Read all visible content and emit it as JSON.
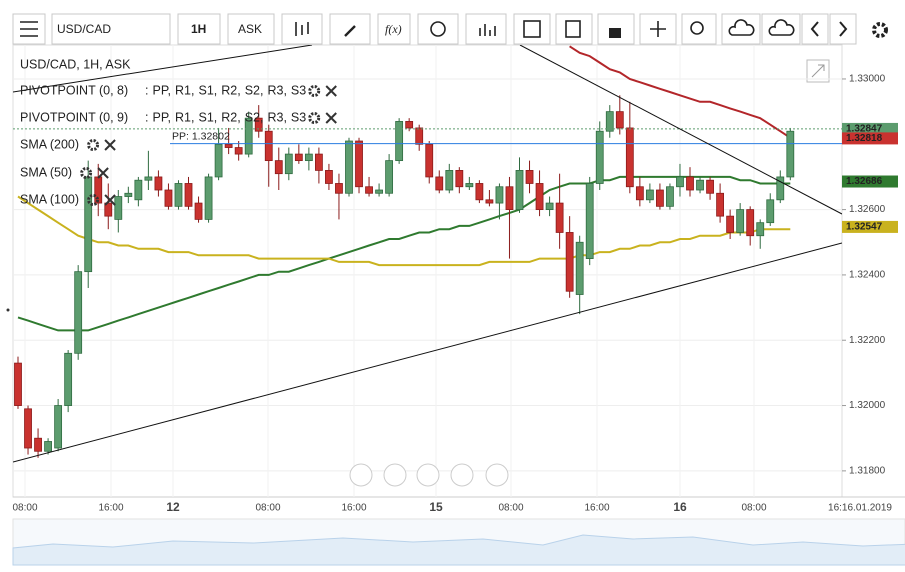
{
  "toolbar": {
    "symbol": "USD/CAD",
    "interval": "1H",
    "price_type": "ASK",
    "function": "f(x)"
  },
  "legend": {
    "header": "USD/CAD, 1H, ASK",
    "pivots": [
      "PIVOTPOINT (0, 8)",
      "PIVOTPOINT (0, 9)"
    ],
    "pivot_prefix": ":",
    "pivot_levels": [
      {
        "label": "PP,",
        "color": "#2a7de1"
      },
      {
        "label": "R1,",
        "color": "#2e8b3a"
      },
      {
        "label": "S1,",
        "color": "#d0161b"
      },
      {
        "label": "R2,",
        "color": "#d0161b"
      },
      {
        "label": "S2,",
        "color": "#e8860c"
      },
      {
        "label": "R3,",
        "color": "#e8860c"
      },
      {
        "label": "S3",
        "color": "#d8c400"
      }
    ]
  },
  "chart_data": {
    "type": "candlestick",
    "ylim": [
      1.3172,
      1.33104
    ],
    "yticks": [
      {
        "value": 1.33,
        "label": "1.33000"
      },
      {
        "value": 1.326,
        "label": "1.32600"
      },
      {
        "value": 1.324,
        "label": "1.32400"
      },
      {
        "value": 1.322,
        "label": "1.32200"
      },
      {
        "value": 1.32,
        "label": "1.32000"
      },
      {
        "value": 1.318,
        "label": "1.31800"
      }
    ],
    "grid": true,
    "time_axis": [
      "08:00",
      "16:00",
      "12",
      "08:00",
      "16:00",
      "15",
      "08:00",
      "16:00",
      "16",
      "08:00",
      "16:16.01.2019"
    ],
    "up_color": "#5c9c6e",
    "down_color": "#c9322f",
    "open": [
      1.3213,
      1.3199,
      1.319,
      1.3186,
      1.3187,
      1.32,
      1.3216,
      1.3241,
      1.327,
      1.3262,
      1.3257,
      1.3264,
      1.3263,
      1.3269,
      1.327,
      1.3266,
      1.3261,
      1.3268,
      1.3262,
      1.3257,
      1.327,
      1.328,
      1.3279,
      1.3277,
      1.3288,
      1.3284,
      1.3275,
      1.3271,
      1.3277,
      1.3275,
      1.3277,
      1.3272,
      1.3268,
      1.3265,
      1.3281,
      1.3267,
      1.3265,
      1.3265,
      1.3275,
      1.3287,
      1.3285,
      1.328,
      1.327,
      1.3266,
      1.3272,
      1.3267,
      1.3268,
      1.3263,
      1.3262,
      1.3267,
      1.326,
      1.3272,
      1.3268,
      1.326,
      1.3262,
      1.3253,
      1.3234,
      1.3245,
      1.3268,
      1.3284,
      1.329,
      1.3285,
      1.3267,
      1.3263,
      1.3266,
      1.3261,
      1.3267,
      1.327,
      1.3266,
      1.3269,
      1.3265,
      1.3258,
      1.3253,
      1.326,
      1.3252,
      1.3256,
      1.3263,
      1.327
    ],
    "high": [
      1.3215,
      1.32,
      1.3193,
      1.319,
      1.3202,
      1.3217,
      1.3243,
      1.3275,
      1.3274,
      1.3268,
      1.3266,
      1.3267,
      1.327,
      1.3278,
      1.3272,
      1.3268,
      1.3269,
      1.327,
      1.3264,
      1.3271,
      1.3285,
      1.3285,
      1.3281,
      1.329,
      1.3292,
      1.3286,
      1.3279,
      1.3279,
      1.328,
      1.3279,
      1.3279,
      1.3274,
      1.3271,
      1.3282,
      1.3282,
      1.327,
      1.3268,
      1.3277,
      1.3288,
      1.3288,
      1.3286,
      1.3281,
      1.3272,
      1.3274,
      1.3273,
      1.327,
      1.3269,
      1.3266,
      1.3268,
      1.327,
      1.3276,
      1.3275,
      1.3272,
      1.3264,
      1.3271,
      1.3258,
      1.3252,
      1.327,
      1.3287,
      1.3292,
      1.3295,
      1.3293,
      1.327,
      1.3268,
      1.3268,
      1.3268,
      1.3274,
      1.3273,
      1.327,
      1.327,
      1.3268,
      1.326,
      1.3262,
      1.3261,
      1.3257,
      1.3265,
      1.3272,
      1.3285
    ],
    "low": [
      1.3199,
      1.3185,
      1.3184,
      1.3185,
      1.3186,
      1.3198,
      1.3214,
      1.3236,
      1.3258,
      1.3254,
      1.3253,
      1.3262,
      1.3261,
      1.3266,
      1.3264,
      1.326,
      1.326,
      1.326,
      1.3256,
      1.3256,
      1.3269,
      1.3277,
      1.3275,
      1.3276,
      1.3282,
      1.3267,
      1.3266,
      1.3269,
      1.3274,
      1.3272,
      1.3268,
      1.3266,
      1.3257,
      1.3264,
      1.3265,
      1.3264,
      1.3264,
      1.3264,
      1.3274,
      1.3284,
      1.3278,
      1.3268,
      1.3265,
      1.3265,
      1.3265,
      1.3266,
      1.3262,
      1.3261,
      1.3257,
      1.3245,
      1.3259,
      1.3265,
      1.3258,
      1.3258,
      1.3248,
      1.3233,
      1.3228,
      1.3243,
      1.3266,
      1.3282,
      1.3283,
      1.3265,
      1.3261,
      1.3262,
      1.326,
      1.326,
      1.3264,
      1.3264,
      1.3265,
      1.3263,
      1.3256,
      1.3251,
      1.3252,
      1.3249,
      1.3248,
      1.3255,
      1.3262,
      1.3269
    ],
    "close": [
      1.32,
      1.3187,
      1.3186,
      1.3189,
      1.32,
      1.3216,
      1.3241,
      1.327,
      1.3262,
      1.3258,
      1.3264,
      1.3265,
      1.3269,
      1.327,
      1.3266,
      1.3261,
      1.3268,
      1.3261,
      1.3257,
      1.327,
      1.328,
      1.3279,
      1.3277,
      1.3288,
      1.3284,
      1.3275,
      1.3271,
      1.3277,
      1.3275,
      1.3277,
      1.3272,
      1.3268,
      1.3265,
      1.3281,
      1.3267,
      1.3265,
      1.3266,
      1.3275,
      1.3287,
      1.3285,
      1.328,
      1.327,
      1.3266,
      1.3272,
      1.3267,
      1.3268,
      1.3263,
      1.3262,
      1.3267,
      1.326,
      1.3272,
      1.3268,
      1.326,
      1.3262,
      1.3253,
      1.3235,
      1.325,
      1.3268,
      1.3284,
      1.329,
      1.3285,
      1.3267,
      1.3263,
      1.3266,
      1.3261,
      1.3267,
      1.327,
      1.3266,
      1.3269,
      1.3265,
      1.3258,
      1.3253,
      1.326,
      1.3252,
      1.3256,
      1.3263,
      1.327,
      1.3284
    ],
    "series": [
      {
        "name": "SMA (200)",
        "color": "#b3262a",
        "values": [
          null,
          null,
          null,
          null,
          null,
          null,
          null,
          null,
          null,
          null,
          null,
          null,
          null,
          null,
          null,
          null,
          null,
          null,
          null,
          null,
          null,
          null,
          null,
          null,
          null,
          null,
          null,
          null,
          null,
          null,
          null,
          null,
          null,
          null,
          null,
          null,
          null,
          null,
          null,
          null,
          null,
          null,
          null,
          null,
          null,
          null,
          null,
          null,
          null,
          null,
          null,
          null,
          null,
          null,
          null,
          1.331,
          1.3308,
          1.3307,
          1.3305,
          1.3303,
          1.3302,
          1.33,
          1.3299,
          1.3298,
          1.3297,
          1.3296,
          1.3295,
          1.3294,
          1.3293,
          1.3293,
          1.3292,
          1.3291,
          1.329,
          1.3289,
          1.3288,
          1.3286,
          1.3284,
          1.3282
        ]
      },
      {
        "name": "SMA (50)",
        "color": "#2f7a2f",
        "values": [
          1.3227,
          1.3226,
          1.3225,
          1.3224,
          1.3223,
          1.3223,
          1.3223,
          1.3223,
          1.3224,
          1.3225,
          1.3226,
          1.3227,
          1.3228,
          1.3229,
          1.323,
          1.3231,
          1.3232,
          1.3233,
          1.3234,
          1.3235,
          1.3236,
          1.3237,
          1.3238,
          1.3239,
          1.324,
          1.324,
          1.3241,
          1.3241,
          1.3242,
          1.3243,
          1.3244,
          1.3245,
          1.3246,
          1.3247,
          1.3248,
          1.3249,
          1.325,
          1.3251,
          1.3251,
          1.3252,
          1.3253,
          1.3253,
          1.3254,
          1.3254,
          1.3255,
          1.3255,
          1.3256,
          1.3257,
          1.3258,
          1.3259,
          1.326,
          1.3262,
          1.3264,
          1.3266,
          1.3267,
          1.3268,
          1.3268,
          1.3268,
          1.3269,
          1.3269,
          1.327,
          1.327,
          1.327,
          1.327,
          1.327,
          1.327,
          1.327,
          1.327,
          1.327,
          1.327,
          1.327,
          1.327,
          1.3269,
          1.3269,
          1.3268,
          1.3268,
          1.3268,
          1.3268
        ]
      },
      {
        "name": "SMA (100)",
        "color": "#c9b21e",
        "values": [
          1.3264,
          1.3262,
          1.326,
          1.3258,
          1.3256,
          1.3254,
          1.3252,
          1.3251,
          1.325,
          1.325,
          1.3249,
          1.3249,
          1.3248,
          1.3248,
          1.3248,
          1.3247,
          1.3247,
          1.3247,
          1.3246,
          1.3246,
          1.3246,
          1.3246,
          1.3246,
          1.3246,
          1.3245,
          1.3245,
          1.3245,
          1.3245,
          1.3245,
          1.3245,
          1.3245,
          1.3245,
          1.3244,
          1.3244,
          1.3244,
          1.3244,
          1.3243,
          1.3243,
          1.3243,
          1.3243,
          1.3243,
          1.3243,
          1.3243,
          1.3243,
          1.3243,
          1.3243,
          1.3243,
          1.3244,
          1.3244,
          1.3244,
          1.3244,
          1.3244,
          1.3245,
          1.3245,
          1.3245,
          1.3245,
          1.3246,
          1.3246,
          1.3247,
          1.3247,
          1.3248,
          1.3248,
          1.3249,
          1.3249,
          1.325,
          1.325,
          1.3251,
          1.3251,
          1.3252,
          1.3252,
          1.3252,
          1.3253,
          1.3253,
          1.3253,
          1.3254,
          1.3254,
          1.3254,
          1.3254
        ]
      }
    ],
    "pp_line": {
      "value": 1.32802,
      "label": "PP: 1.32802",
      "color": "#2a7de1"
    },
    "markers": [
      {
        "value": 1.32847,
        "label": "1.32847",
        "color": "#5c9c6e"
      },
      {
        "value": 1.32818,
        "label": "1.32818",
        "color": "#c9322f"
      },
      {
        "value": 1.32686,
        "label": "1.32686",
        "color": "#2f7a2f"
      },
      {
        "value": 1.32547,
        "label": "1.32547",
        "color": "#c9b21e"
      }
    ]
  }
}
